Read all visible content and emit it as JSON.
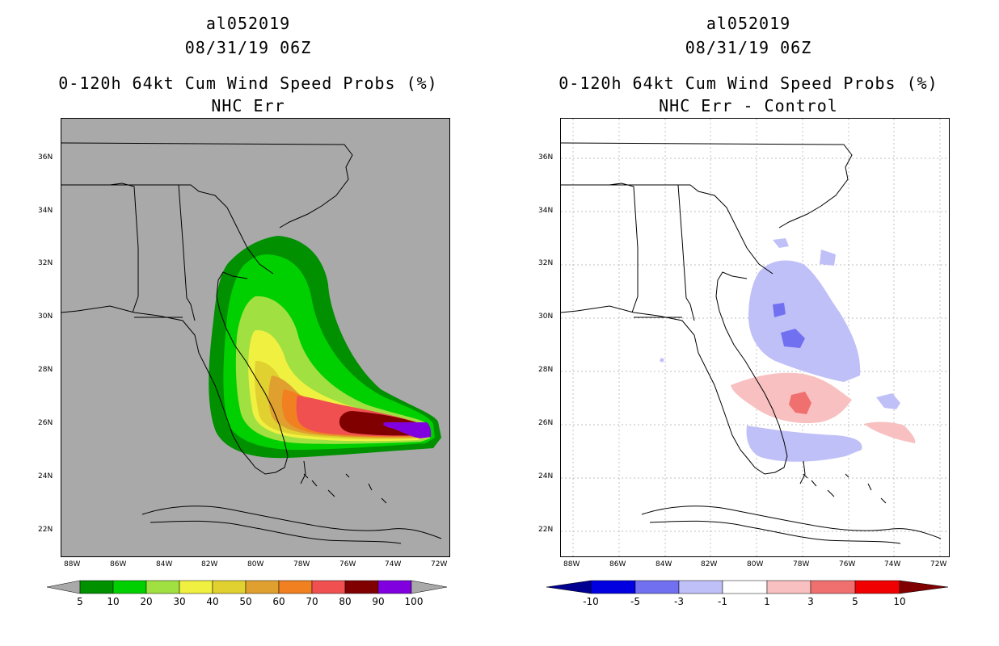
{
  "left": {
    "storm_id": "al052019",
    "datetime": "08/31/19 06Z",
    "product": "0-120h 64kt Cum Wind Speed Probs (%)",
    "subtitle": "NHC Err",
    "background": "#a9a9a9",
    "colorbar": {
      "labels": [
        "5",
        "10",
        "20",
        "30",
        "40",
        "50",
        "60",
        "70",
        "80",
        "90",
        "100"
      ],
      "colors": [
        "#009000",
        "#00d000",
        "#a0e040",
        "#f0f040",
        "#e0d030",
        "#e0a030",
        "#f08020",
        "#f05050",
        "#800000",
        "#8000e0"
      ],
      "end_color": "#a9a9a9"
    }
  },
  "right": {
    "storm_id": "al052019",
    "datetime": "08/31/19 06Z",
    "product": "0-120h 64kt Cum Wind Speed Probs (%)",
    "subtitle": "NHC Err - Control",
    "background": "#ffffff",
    "colorbar": {
      "labels": [
        "-10",
        "-5",
        "-3",
        "-1",
        "1",
        "3",
        "5",
        "10"
      ],
      "colors": [
        "#0000e0",
        "#7070f0",
        "#c0c0f8",
        "#ffffff",
        "#f8c0c0",
        "#f07070",
        "#f00000"
      ],
      "low_color": "#000090",
      "high_color": "#800000"
    }
  },
  "axes": {
    "x_ticks": [
      "88W",
      "86W",
      "84W",
      "82W",
      "80W",
      "78W",
      "76W",
      "74W",
      "72W"
    ],
    "y_ticks": [
      "36N",
      "34N",
      "32N",
      "30N",
      "28N",
      "26N",
      "24N",
      "22N"
    ],
    "lon_range": [
      -88.5,
      -71.5
    ],
    "lat_range": [
      21,
      37.5
    ]
  }
}
